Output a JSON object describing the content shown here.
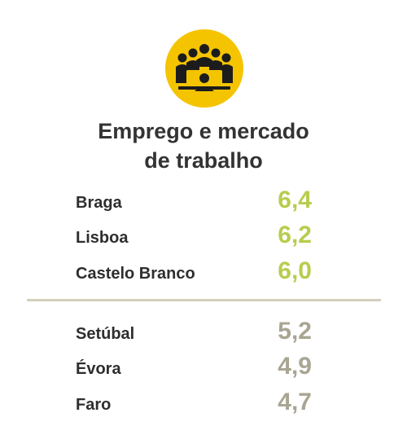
{
  "header": {
    "icon": "meeting-people-icon",
    "icon_color": "#f5c400",
    "title_line1": "Emprego e mercado",
    "title_line2": "de trabalho"
  },
  "colors": {
    "top_value": "#b6cd4e",
    "bottom_value": "#a8a592",
    "divider": "#d4cfbc"
  },
  "top_rows": [
    {
      "name": "Braga",
      "value": "6,4"
    },
    {
      "name": "Lisboa",
      "value": "6,2"
    },
    {
      "name": "Castelo Branco",
      "value": "6,0"
    }
  ],
  "bottom_rows": [
    {
      "name": "Setúbal",
      "value": "5,2"
    },
    {
      "name": "Évora",
      "value": "4,9"
    },
    {
      "name": "Faro",
      "value": "4,7"
    }
  ]
}
